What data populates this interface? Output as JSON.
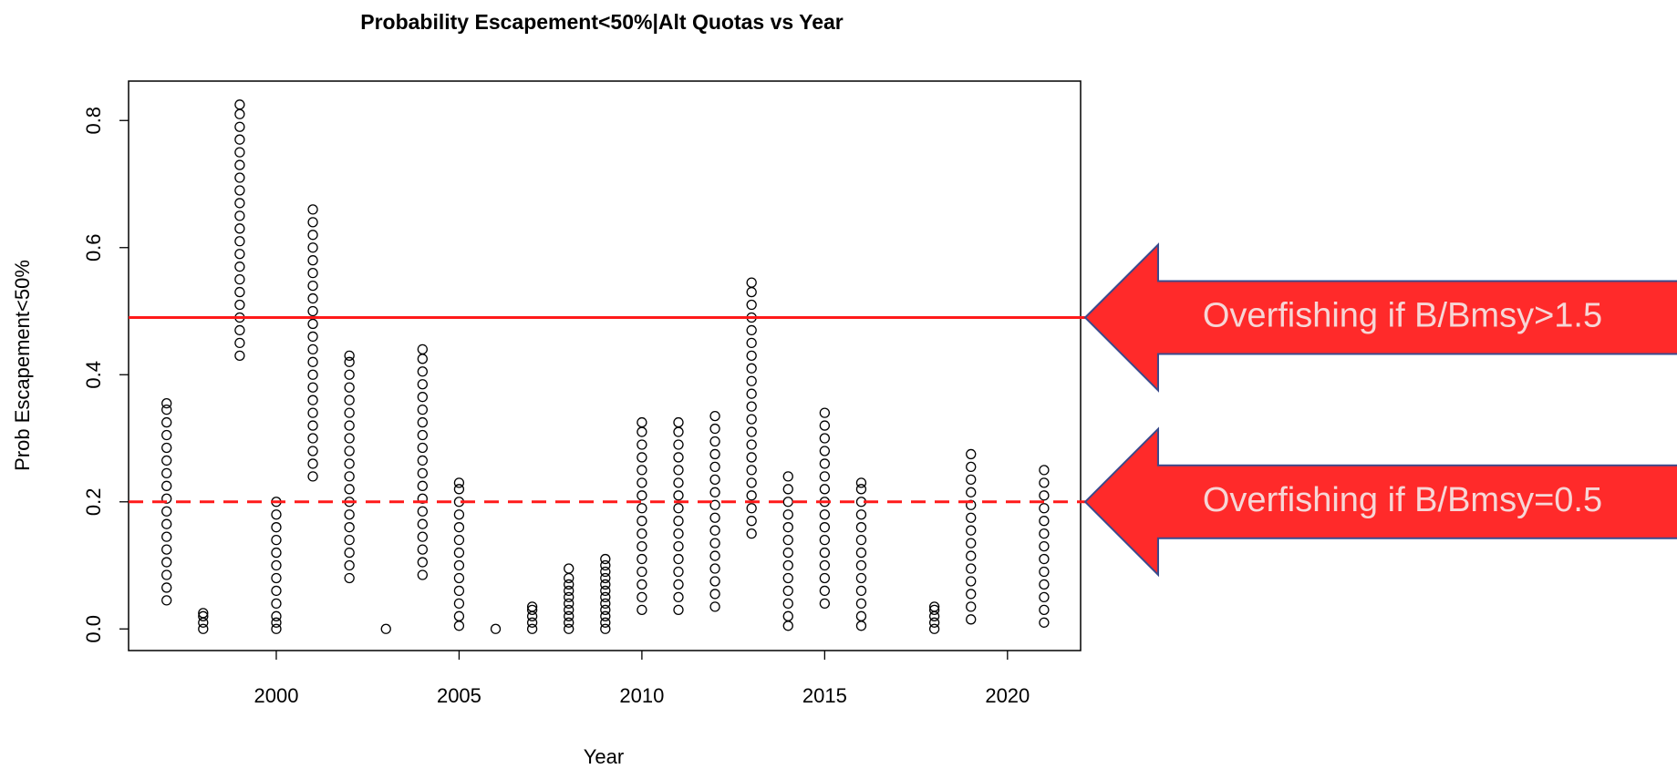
{
  "chart_data": {
    "type": "scatter",
    "title": "Probability Escapement<50%|Alt Quotas vs Year",
    "x_label": "Year",
    "y_label": "Prob Escapement<50%",
    "xlim": [
      1995.96,
      2022.0
    ],
    "xticks": [
      2000,
      2005,
      2010,
      2015,
      2020
    ],
    "ylim": [
      -0.034,
      0.862
    ],
    "yticks": [
      0.0,
      0.2,
      0.4,
      0.6,
      0.8
    ],
    "color": "#000000",
    "columns": [
      {
        "x": 1997,
        "y": [
          0.045,
          0.065,
          0.085,
          0.105,
          0.125,
          0.145,
          0.165,
          0.185,
          0.205,
          0.225,
          0.245,
          0.265,
          0.285,
          0.305,
          0.325,
          0.345,
          0.355
        ]
      },
      {
        "x": 1998,
        "y": [
          0,
          0.01,
          0.02,
          0.025
        ]
      },
      {
        "x": 1999,
        "y": [
          0.43,
          0.45,
          0.47,
          0.49,
          0.51,
          0.53,
          0.55,
          0.57,
          0.59,
          0.61,
          0.63,
          0.65,
          0.67,
          0.69,
          0.71,
          0.73,
          0.75,
          0.77,
          0.79,
          0.81,
          0.825
        ]
      },
      {
        "x": 2000,
        "y": [
          0,
          0.01,
          0.02,
          0.04,
          0.06,
          0.08,
          0.1,
          0.12,
          0.14,
          0.16,
          0.18,
          0.2
        ]
      },
      {
        "x": 2001,
        "y": [
          0.24,
          0.26,
          0.28,
          0.3,
          0.32,
          0.34,
          0.36,
          0.38,
          0.4,
          0.42,
          0.44,
          0.46,
          0.48,
          0.5,
          0.52,
          0.54,
          0.56,
          0.58,
          0.6,
          0.62,
          0.64,
          0.66
        ]
      },
      {
        "x": 2002,
        "y": [
          0.08,
          0.1,
          0.12,
          0.14,
          0.16,
          0.18,
          0.2,
          0.22,
          0.24,
          0.26,
          0.28,
          0.3,
          0.32,
          0.34,
          0.36,
          0.38,
          0.4,
          0.42,
          0.43
        ]
      },
      {
        "x": 2003,
        "y": [
          0
        ]
      },
      {
        "x": 2004,
        "y": [
          0.085,
          0.105,
          0.125,
          0.145,
          0.165,
          0.185,
          0.205,
          0.225,
          0.245,
          0.265,
          0.285,
          0.305,
          0.325,
          0.345,
          0.365,
          0.385,
          0.405,
          0.425,
          0.44
        ]
      },
      {
        "x": 2005,
        "y": [
          0.005,
          0.02,
          0.04,
          0.06,
          0.08,
          0.1,
          0.12,
          0.14,
          0.16,
          0.18,
          0.2,
          0.22,
          0.23
        ]
      },
      {
        "x": 2006,
        "y": [
          0
        ]
      },
      {
        "x": 2007,
        "y": [
          0,
          0.01,
          0.02,
          0.03,
          0.035
        ]
      },
      {
        "x": 2008,
        "y": [
          0,
          0.01,
          0.02,
          0.03,
          0.04,
          0.05,
          0.06,
          0.07,
          0.08,
          0.095
        ]
      },
      {
        "x": 2009,
        "y": [
          0,
          0.01,
          0.02,
          0.03,
          0.04,
          0.05,
          0.06,
          0.07,
          0.08,
          0.09,
          0.1,
          0.11
        ]
      },
      {
        "x": 2010,
        "y": [
          0.03,
          0.05,
          0.07,
          0.09,
          0.11,
          0.13,
          0.15,
          0.17,
          0.19,
          0.21,
          0.23,
          0.25,
          0.27,
          0.29,
          0.31,
          0.325
        ]
      },
      {
        "x": 2011,
        "y": [
          0.03,
          0.05,
          0.07,
          0.09,
          0.11,
          0.13,
          0.15,
          0.17,
          0.19,
          0.21,
          0.23,
          0.25,
          0.27,
          0.29,
          0.31,
          0.325
        ]
      },
      {
        "x": 2012,
        "y": [
          0.035,
          0.055,
          0.075,
          0.095,
          0.115,
          0.135,
          0.155,
          0.175,
          0.195,
          0.215,
          0.235,
          0.255,
          0.275,
          0.295,
          0.315,
          0.335
        ]
      },
      {
        "x": 2013,
        "y": [
          0.15,
          0.17,
          0.19,
          0.21,
          0.23,
          0.25,
          0.27,
          0.29,
          0.31,
          0.33,
          0.35,
          0.37,
          0.39,
          0.41,
          0.43,
          0.45,
          0.47,
          0.49,
          0.51,
          0.53,
          0.545
        ]
      },
      {
        "x": 2014,
        "y": [
          0.005,
          0.02,
          0.04,
          0.06,
          0.08,
          0.1,
          0.12,
          0.14,
          0.16,
          0.18,
          0.2,
          0.22,
          0.24
        ]
      },
      {
        "x": 2015,
        "y": [
          0.04,
          0.06,
          0.08,
          0.1,
          0.12,
          0.14,
          0.16,
          0.18,
          0.2,
          0.22,
          0.24,
          0.26,
          0.28,
          0.3,
          0.32,
          0.34
        ]
      },
      {
        "x": 2016,
        "y": [
          0.005,
          0.02,
          0.04,
          0.06,
          0.08,
          0.1,
          0.12,
          0.14,
          0.16,
          0.18,
          0.2,
          0.22,
          0.23
        ]
      },
      {
        "x": 2018,
        "y": [
          0,
          0.01,
          0.02,
          0.03,
          0.035
        ]
      },
      {
        "x": 2019,
        "y": [
          0.015,
          0.035,
          0.055,
          0.075,
          0.095,
          0.115,
          0.135,
          0.155,
          0.175,
          0.195,
          0.215,
          0.235,
          0.255,
          0.275
        ]
      },
      {
        "x": 2021,
        "y": [
          0.01,
          0.03,
          0.05,
          0.07,
          0.09,
          0.11,
          0.13,
          0.15,
          0.17,
          0.19,
          0.21,
          0.23,
          0.25
        ]
      }
    ],
    "hlines": [
      {
        "value": 0.49,
        "style": "solid",
        "color": "#ff1a1a",
        "annotation": "Overfishing if B/Bmsy>1.5"
      },
      {
        "value": 0.2,
        "style": "dashed",
        "color": "#ff1a1a",
        "annotation": "Overfishing if B/Bmsy=0.5"
      }
    ]
  }
}
